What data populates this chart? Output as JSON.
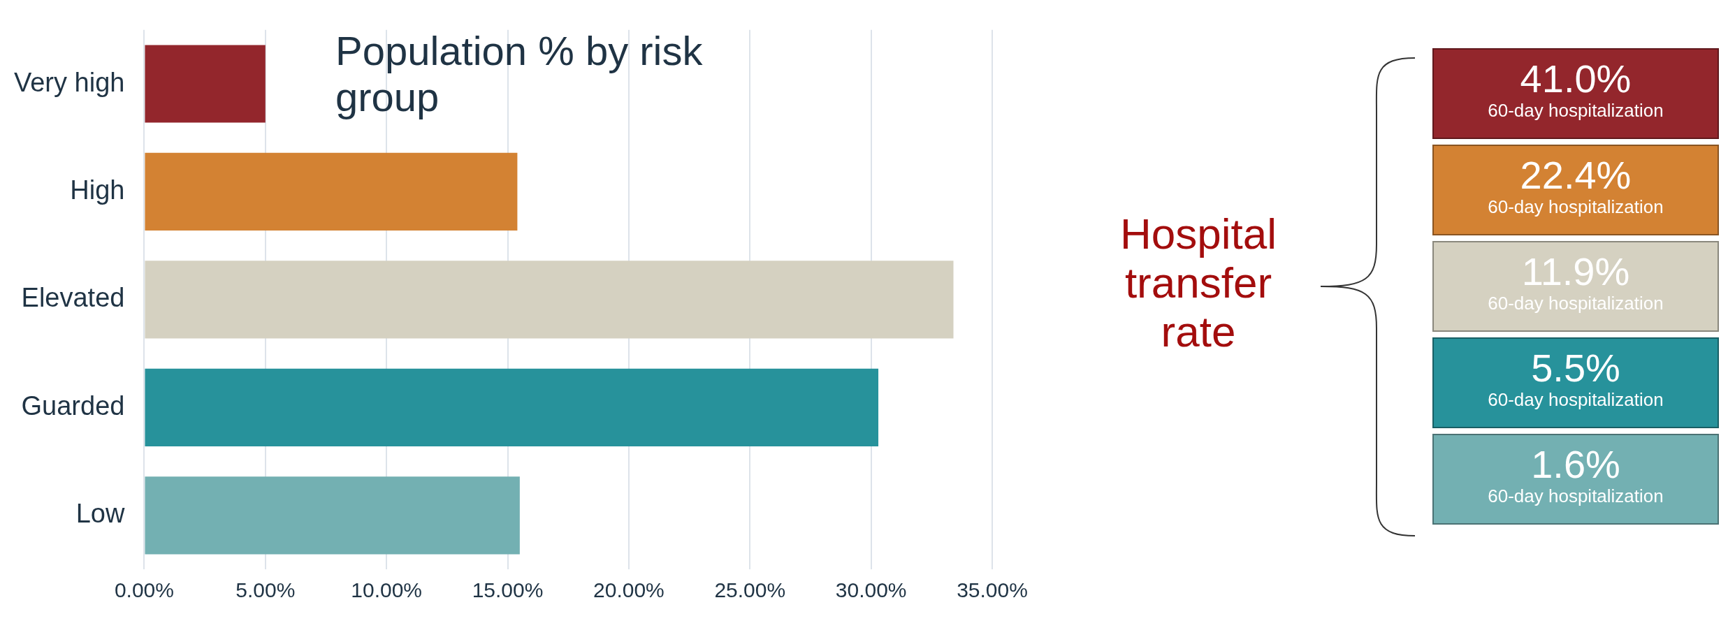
{
  "chart_data": [
    {
      "type": "bar",
      "title": "Population % by risk group",
      "orientation": "horizontal",
      "categories": [
        "Very high",
        "High",
        "Elevated",
        "Guarded",
        "Low"
      ],
      "values": [
        5.0,
        15.4,
        33.4,
        30.3,
        15.5
      ],
      "colors": [
        "#93262c",
        "#d38233",
        "#d5d1c1",
        "#27929b",
        "#73b0b2"
      ],
      "xlim": [
        0,
        35
      ],
      "xticks": [
        {
          "value": 0,
          "label": "0.00%"
        },
        {
          "value": 5,
          "label": "5.00%"
        },
        {
          "value": 10,
          "label": "10.00%"
        },
        {
          "value": 15,
          "label": "15.00%"
        },
        {
          "value": 20,
          "label": "20.00%"
        },
        {
          "value": 25,
          "label": "25.00%"
        },
        {
          "value": 30,
          "label": "30.00%"
        },
        {
          "value": 35,
          "label": "35.00%"
        }
      ],
      "grid": "x",
      "legend": false
    },
    {
      "type": "other",
      "title": "Hospital transfer rate",
      "values": [
        41.0,
        22.4,
        11.9,
        5.5,
        1.6
      ],
      "value_labels": [
        "41.0%",
        "22.4%",
        "11.9%",
        "5.5%",
        "1.6%"
      ],
      "colors": [
        "#93262c",
        "#d38233",
        "#d5d1c1",
        "#27929b",
        "#73b0b2"
      ],
      "annotations": [
        "60-day hospitalization",
        "60-day hospitalization",
        "60-day hospitalization",
        "60-day hospitalization",
        "60-day hospitalization"
      ]
    }
  ]
}
